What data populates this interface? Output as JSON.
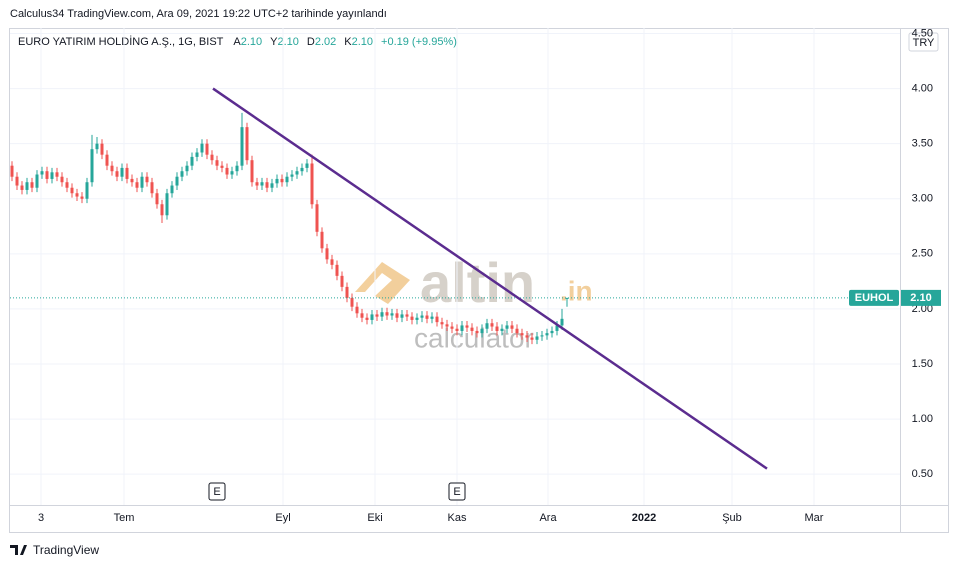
{
  "header": {
    "published": "Calculus34 TradingView.com, Ara 09, 2021 19:22 UTC+2 tarihinde yayınlandı",
    "symbol": "EURO YATIRIM HOLDİNG A.Ş., 1G, BIST",
    "ohlc": [
      {
        "key": "A",
        "label": "2.10"
      },
      {
        "key": "Y",
        "label": "2.10"
      },
      {
        "key": "D",
        "label": "2.02"
      },
      {
        "key": "K",
        "label": "2.10"
      }
    ],
    "change": "+0.19 (+9.95%)",
    "currency": "TRY"
  },
  "watermark": {
    "brand": "altin",
    "suffix": ".in",
    "sub": "calculator"
  },
  "footer": {
    "brand": "TradingView"
  },
  "chart_data": {
    "type": "candlestick",
    "series": [
      {
        "name": "EUHOL",
        "up_color": "#26a69a",
        "down_color": "#ef5350",
        "open": [
          3.3,
          3.2,
          3.12,
          3.08,
          3.15,
          3.1,
          3.22,
          3.25,
          3.18,
          3.24,
          3.2,
          3.15,
          3.1,
          3.05,
          3.02,
          3.0,
          3.15,
          3.45,
          3.5,
          3.4,
          3.3,
          3.25,
          3.2,
          3.28,
          3.18,
          3.15,
          3.1,
          3.2,
          3.15,
          3.05,
          2.95,
          2.85,
          3.05,
          3.12,
          3.2,
          3.25,
          3.3,
          3.38,
          3.42,
          3.5,
          3.4,
          3.35,
          3.3,
          3.28,
          3.22,
          3.25,
          3.3,
          3.65,
          3.35,
          3.15,
          3.12,
          3.15,
          3.1,
          3.14,
          3.18,
          3.15,
          3.2,
          3.22,
          3.25,
          3.28,
          3.32,
          2.95,
          2.7,
          2.55,
          2.45,
          2.4,
          2.3,
          2.2,
          2.1,
          2.02,
          1.96,
          1.92,
          1.9,
          1.95,
          1.93,
          1.97,
          1.94,
          1.96,
          1.92,
          1.95,
          1.93,
          1.9,
          1.92,
          1.94,
          1.91,
          1.93,
          1.88,
          1.86,
          1.84,
          1.82,
          1.8,
          1.85,
          1.83,
          1.8,
          1.78,
          1.82,
          1.87,
          1.84,
          1.8,
          1.82,
          1.85,
          1.82,
          1.78,
          1.76,
          1.74,
          1.72,
          1.75,
          1.76,
          1.78,
          1.8,
          1.85,
          2.1
        ],
        "high": [
          3.34,
          3.24,
          3.16,
          3.19,
          3.19,
          3.26,
          3.29,
          3.29,
          3.28,
          3.28,
          3.24,
          3.19,
          3.14,
          3.09,
          3.06,
          3.19,
          3.58,
          3.56,
          3.54,
          3.44,
          3.34,
          3.29,
          3.32,
          3.32,
          3.22,
          3.19,
          3.24,
          3.24,
          3.19,
          3.09,
          2.99,
          3.09,
          3.16,
          3.24,
          3.29,
          3.34,
          3.42,
          3.46,
          3.54,
          3.54,
          3.44,
          3.39,
          3.34,
          3.32,
          3.29,
          3.34,
          3.78,
          3.69,
          3.39,
          3.19,
          3.19,
          3.19,
          3.18,
          3.22,
          3.22,
          3.24,
          3.26,
          3.29,
          3.32,
          3.36,
          3.4,
          2.99,
          2.74,
          2.59,
          2.49,
          2.44,
          2.34,
          2.24,
          2.14,
          2.06,
          2.0,
          1.96,
          1.99,
          1.99,
          2.01,
          2.01,
          2.0,
          2.0,
          1.99,
          1.99,
          1.97,
          1.96,
          1.98,
          1.98,
          1.97,
          1.97,
          1.92,
          1.9,
          1.88,
          1.86,
          1.89,
          1.89,
          1.87,
          1.84,
          1.86,
          1.91,
          1.91,
          1.88,
          1.86,
          1.89,
          1.89,
          1.86,
          1.82,
          1.8,
          1.78,
          1.79,
          1.8,
          1.82,
          1.84,
          1.89,
          2.0,
          2.1
        ],
        "low": [
          3.16,
          3.08,
          3.04,
          3.04,
          3.06,
          3.06,
          3.18,
          3.14,
          3.14,
          3.16,
          3.11,
          3.06,
          3.01,
          2.98,
          2.96,
          2.96,
          3.11,
          3.41,
          3.36,
          3.26,
          3.21,
          3.16,
          3.16,
          3.14,
          3.11,
          3.06,
          3.06,
          3.11,
          3.01,
          2.91,
          2.78,
          2.81,
          3.01,
          3.08,
          3.16,
          3.21,
          3.26,
          3.34,
          3.38,
          3.36,
          3.31,
          3.26,
          3.24,
          3.18,
          3.18,
          3.21,
          3.26,
          3.31,
          3.11,
          3.08,
          3.08,
          3.06,
          3.06,
          3.1,
          3.11,
          3.11,
          3.16,
          3.18,
          3.21,
          3.24,
          2.91,
          2.66,
          2.51,
          2.41,
          2.36,
          2.26,
          2.16,
          2.06,
          1.98,
          1.92,
          1.88,
          1.86,
          1.86,
          1.89,
          1.89,
          1.9,
          1.9,
          1.88,
          1.88,
          1.89,
          1.86,
          1.86,
          1.88,
          1.87,
          1.87,
          1.84,
          1.82,
          1.8,
          1.78,
          1.76,
          1.76,
          1.79,
          1.76,
          1.74,
          1.74,
          1.78,
          1.8,
          1.76,
          1.76,
          1.78,
          1.78,
          1.74,
          1.72,
          1.7,
          1.68,
          1.68,
          1.71,
          1.72,
          1.74,
          1.76,
          1.81,
          2.02
        ],
        "close": [
          3.2,
          3.12,
          3.08,
          3.15,
          3.1,
          3.22,
          3.25,
          3.18,
          3.24,
          3.2,
          3.15,
          3.1,
          3.05,
          3.02,
          3.0,
          3.15,
          3.45,
          3.5,
          3.4,
          3.3,
          3.25,
          3.2,
          3.28,
          3.18,
          3.15,
          3.1,
          3.2,
          3.15,
          3.05,
          2.95,
          2.85,
          3.05,
          3.12,
          3.2,
          3.25,
          3.3,
          3.38,
          3.42,
          3.5,
          3.4,
          3.35,
          3.3,
          3.28,
          3.22,
          3.25,
          3.3,
          3.65,
          3.35,
          3.15,
          3.12,
          3.15,
          3.1,
          3.14,
          3.18,
          3.15,
          3.2,
          3.22,
          3.25,
          3.28,
          3.32,
          2.95,
          2.7,
          2.55,
          2.45,
          2.4,
          2.3,
          2.2,
          2.1,
          2.02,
          1.96,
          1.92,
          1.9,
          1.95,
          1.93,
          1.97,
          1.94,
          1.96,
          1.92,
          1.95,
          1.93,
          1.9,
          1.92,
          1.94,
          1.91,
          1.93,
          1.88,
          1.86,
          1.84,
          1.82,
          1.8,
          1.85,
          1.83,
          1.8,
          1.78,
          1.82,
          1.87,
          1.84,
          1.8,
          1.82,
          1.85,
          1.82,
          1.78,
          1.76,
          1.74,
          1.72,
          1.75,
          1.76,
          1.78,
          1.8,
          1.85,
          1.91,
          2.1
        ]
      }
    ],
    "price_label": {
      "value": 2.1,
      "label": "2.10"
    },
    "trendline": {
      "x": [
        40.2,
        151
      ],
      "y": [
        4.0,
        0.55
      ],
      "color": "#5b2c8f"
    },
    "events": [
      {
        "x": 41,
        "label": "E"
      },
      {
        "x": 89,
        "label": "E"
      }
    ],
    "xlim": [
      -0.4,
      177.6
    ],
    "xticks": [
      {
        "value": 5.8,
        "label": "3"
      },
      {
        "value": 22.4,
        "label": "Tem"
      },
      {
        "value": 54.2,
        "label": "Eyl"
      },
      {
        "value": 72.6,
        "label": "Eki"
      },
      {
        "value": 89,
        "label": "Kas"
      },
      {
        "value": 107.2,
        "label": "Ara"
      },
      {
        "value": 126.4,
        "label": "2022"
      },
      {
        "value": 144,
        "label": "Şub"
      },
      {
        "value": 160.4,
        "label": "Mar"
      }
    ],
    "ylim": [
      0.22,
      4.55
    ],
    "yticks": [
      {
        "value": 0.5,
        "label": "0.50"
      },
      {
        "value": 1,
        "label": "1.00"
      },
      {
        "value": 1.5,
        "label": "1.50"
      },
      {
        "value": 2,
        "label": "2.00"
      },
      {
        "value": 2.5,
        "label": "2.50"
      },
      {
        "value": 3,
        "label": "3.00"
      },
      {
        "value": 3.5,
        "label": "3.50"
      },
      {
        "value": 4,
        "label": "4.00"
      },
      {
        "value": 4.5,
        "label": "4.50"
      }
    ],
    "grid": true
  }
}
